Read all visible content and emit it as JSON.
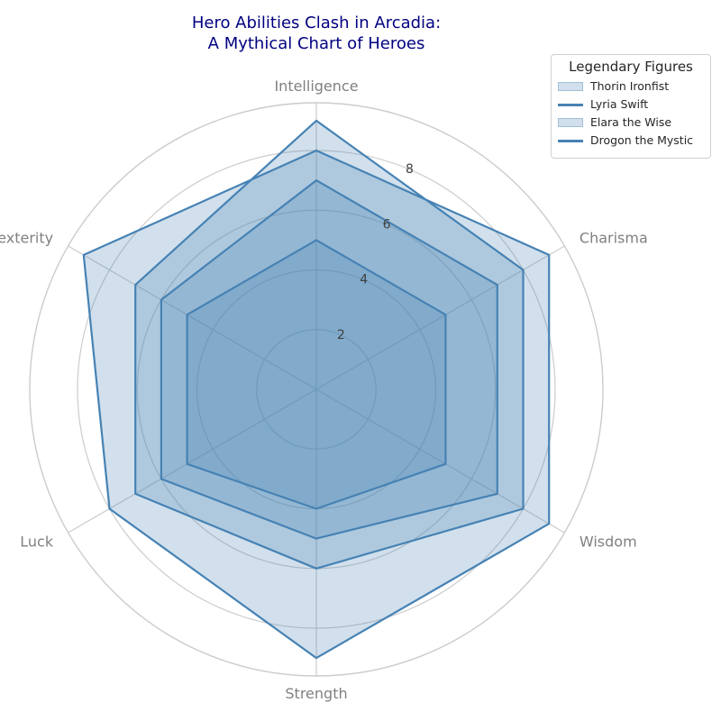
{
  "chart_data": {
    "type": "radar",
    "title_lines": [
      "Hero Abilities Clash in Arcadia:",
      "A Mythical Chart of Heroes"
    ],
    "axes": [
      "Intelligence",
      "Charisma",
      "Wisdom",
      "Strength",
      "Luck",
      "Dexterity"
    ],
    "rlim": [
      0,
      9.6
    ],
    "r_ticks": [
      2,
      4,
      6,
      8
    ],
    "grid": true,
    "series": [
      {
        "name": "Thorin Ironfist",
        "values": [
          5,
          5,
          5,
          4,
          5,
          5
        ],
        "legend_style": "patch"
      },
      {
        "name": "Lyria Swift",
        "values": [
          7,
          7,
          7,
          5,
          6,
          6
        ],
        "legend_style": "line"
      },
      {
        "name": "Elara the Wise",
        "values": [
          9,
          8,
          8,
          6,
          7,
          7
        ],
        "legend_style": "patch"
      },
      {
        "name": "Drogon the Mystic",
        "values": [
          8,
          9,
          9,
          9,
          8,
          9
        ],
        "legend_style": "line"
      }
    ],
    "legend": {
      "title": "Legendary Figures",
      "placement": "top-right, outside plot"
    },
    "colors": {
      "line": "#4682b4",
      "fill": "#4682b4",
      "fill_opacity": 0.25,
      "grid": "#cccccc",
      "axis_label": "#808080",
      "tick_label": "#404040",
      "title": "#000080"
    }
  }
}
